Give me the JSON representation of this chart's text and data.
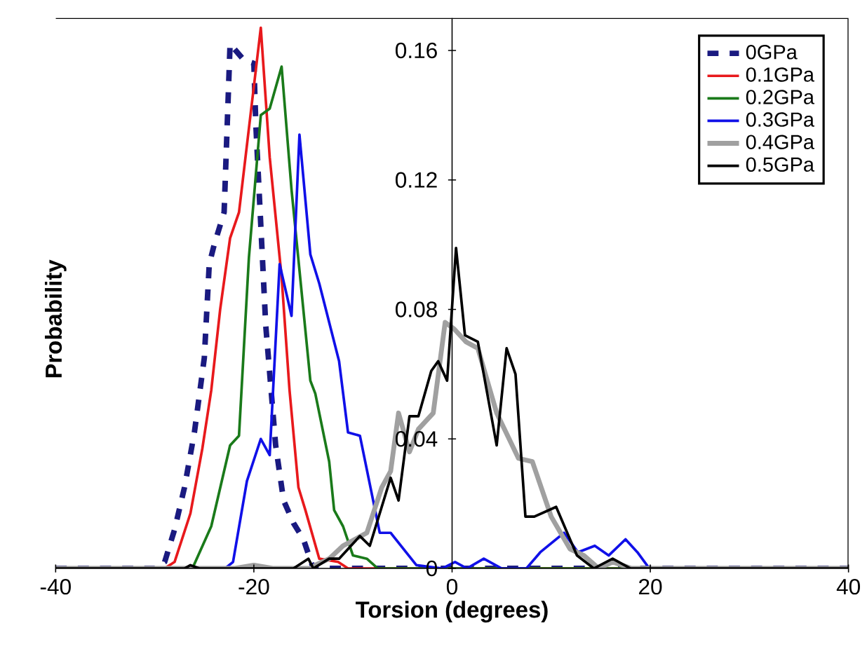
{
  "chart_data": {
    "type": "line",
    "xlabel": "Torsion (degrees)",
    "ylabel": "Probability",
    "xlim": [
      -40,
      40
    ],
    "xticks": [
      -40,
      -20,
      0,
      20,
      40
    ],
    "ylim": [
      0,
      0.17
    ],
    "yticks": [
      0,
      0.04,
      0.08,
      0.12,
      0.16
    ],
    "grid": false,
    "legend": "top right",
    "marker": "none",
    "series": [
      {
        "name": "0GPa",
        "color": "#1a1a80",
        "line_style": "dashed",
        "x": [
          -40,
          -30,
          -29,
          -28,
          -27,
          -26,
          -25,
          -24.5,
          -24,
          -23,
          -22.4,
          -21,
          -20,
          -19.8,
          -18.8,
          -17.8,
          -17,
          -16,
          -15,
          -14,
          40
        ],
        "values": [
          0,
          0,
          0.002,
          0.012,
          0.025,
          0.042,
          0.065,
          0.094,
          0.1,
          0.11,
          0.162,
          0.157,
          0.156,
          0.137,
          0.075,
          0.038,
          0.021,
          0.014,
          0.009,
          0,
          0
        ]
      },
      {
        "name": "0.1GPa",
        "color": "#e8191c",
        "x": [
          -40,
          -29,
          -28,
          -26.4,
          -25.2,
          -24.3,
          -23.4,
          -22.4,
          -21.5,
          -19.3,
          -18.4,
          -17.2,
          -16.4,
          -15.5,
          -14.8,
          -13.4,
          -11.5,
          -10.5,
          40
        ],
        "values": [
          0,
          0,
          0.002,
          0.017,
          0.037,
          0.055,
          0.08,
          0.102,
          0.11,
          0.167,
          0.127,
          0.09,
          0.055,
          0.025,
          0.018,
          0.003,
          0.002,
          0,
          0
        ]
      },
      {
        "name": "0.2GPa",
        "color": "#1a7a1a",
        "x": [
          -40,
          -26.2,
          -24.3,
          -22.4,
          -21.5,
          -20.5,
          -19.3,
          -18.4,
          -17.2,
          -16.2,
          -14.3,
          -13.8,
          -12.4,
          -11.9,
          -11,
          -10,
          -8.6,
          -7.5,
          40
        ],
        "values": [
          0,
          0,
          0.013,
          0.038,
          0.041,
          0.096,
          0.14,
          0.142,
          0.155,
          0.117,
          0.058,
          0.054,
          0.033,
          0.018,
          0.013,
          0.004,
          0.003,
          0,
          0
        ]
      },
      {
        "name": "0.3GPa",
        "color": "#1010e8",
        "x": [
          -40,
          -22.9,
          -22.1,
          -20.7,
          -19.3,
          -18.4,
          -17.4,
          -16.2,
          -15.4,
          -14.3,
          -13.4,
          -11.4,
          -10.5,
          -9.3,
          -7.3,
          -6.2,
          -3.6,
          -1,
          0.3,
          1.5,
          3.2,
          5,
          7.5,
          8.9,
          11.3,
          12.7,
          14.4,
          15.8,
          17.5,
          18.7,
          19.9,
          40
        ],
        "values": [
          0,
          0,
          0.002,
          0.027,
          0.04,
          0.035,
          0.094,
          0.078,
          0.134,
          0.097,
          0.088,
          0.064,
          0.042,
          0.041,
          0.011,
          0.011,
          0.001,
          0,
          0.002,
          0,
          0.003,
          0,
          0,
          0.005,
          0.011,
          0.005,
          0.007,
          0.004,
          0.009,
          0.005,
          0,
          0
        ]
      },
      {
        "name": "0.4GPa",
        "color": "#a0a0a0",
        "x": [
          -40,
          -22,
          -20,
          -18,
          -14,
          -13.8,
          -12.4,
          -11,
          -8.6,
          -7.1,
          -6.2,
          -5.4,
          -4.3,
          -3.4,
          -1.9,
          -0.7,
          0.2,
          1.4,
          2.6,
          4.5,
          6.7,
          8.1,
          10,
          11.9,
          13.3,
          14.8,
          16.2,
          18.1,
          40
        ],
        "values": [
          0,
          0,
          0.001,
          0,
          0,
          0.001,
          0.003,
          0.007,
          0.011,
          0.025,
          0.03,
          0.048,
          0.036,
          0.043,
          0.048,
          0.076,
          0.074,
          0.07,
          0.068,
          0.048,
          0.034,
          0.033,
          0.016,
          0.006,
          0.004,
          0,
          0.002,
          0,
          0
        ]
      },
      {
        "name": "0.5GPa",
        "color": "#000000",
        "x": [
          -40,
          -27,
          -26.4,
          -25.5,
          -17,
          -16,
          -14.5,
          -14,
          -12.4,
          -11.4,
          -9.3,
          -8.3,
          -6.2,
          -5.4,
          -4.3,
          -3.4,
          -2.1,
          -1.4,
          -0.5,
          0.4,
          1.3,
          2.6,
          4.5,
          5.5,
          6.4,
          7.4,
          8.3,
          10.5,
          12.6,
          14.3,
          16.2,
          18,
          40
        ],
        "values": [
          0,
          0,
          0.001,
          0,
          0,
          0,
          0.003,
          0,
          0.003,
          0.003,
          0.01,
          0.007,
          0.028,
          0.021,
          0.047,
          0.047,
          0.061,
          0.064,
          0.058,
          0.099,
          0.072,
          0.07,
          0.038,
          0.068,
          0.06,
          0.016,
          0.016,
          0.019,
          0.004,
          0,
          0.003,
          0,
          0
        ]
      }
    ]
  }
}
